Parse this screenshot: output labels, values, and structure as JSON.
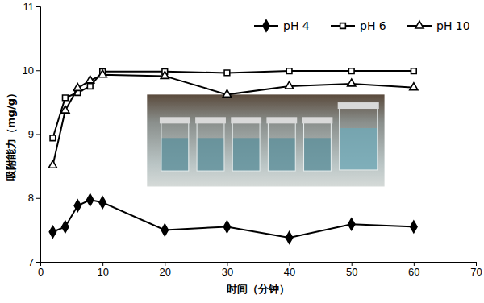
{
  "chart_data": {
    "type": "line",
    "x_label": "时间（分钟）",
    "y_label": "吸附能力（mg/g）",
    "x": [
      2,
      4,
      6,
      8,
      10,
      20,
      30,
      40,
      50,
      60
    ],
    "series": [
      {
        "name": "pH 4",
        "color": "#000000",
        "marker": "diamond",
        "line_style": "solid",
        "values": [
          7.47,
          7.55,
          7.88,
          7.97,
          7.93,
          7.5,
          7.55,
          7.38,
          7.59,
          7.55
        ]
      },
      {
        "name": "pH 6",
        "color": "#000000",
        "marker": "square-open",
        "line_style": "solid",
        "values": [
          8.94,
          9.57,
          9.65,
          9.75,
          9.98,
          9.98,
          9.96,
          9.99,
          9.99,
          9.99
        ]
      },
      {
        "name": "pH 10",
        "color": "#000000",
        "marker": "triangle-open",
        "line_style": "solid",
        "values": [
          8.51,
          9.37,
          9.72,
          9.84,
          9.93,
          9.91,
          9.62,
          9.75,
          9.79,
          9.73
        ]
      }
    ],
    "xlim": [
      0,
      70
    ],
    "xticks": [
      0,
      10,
      20,
      30,
      40,
      50,
      60,
      70
    ],
    "ylim": [
      7,
      11
    ],
    "yticks": [
      7,
      8,
      9,
      10,
      11
    ],
    "grid": false,
    "legend": "top-right"
  }
}
